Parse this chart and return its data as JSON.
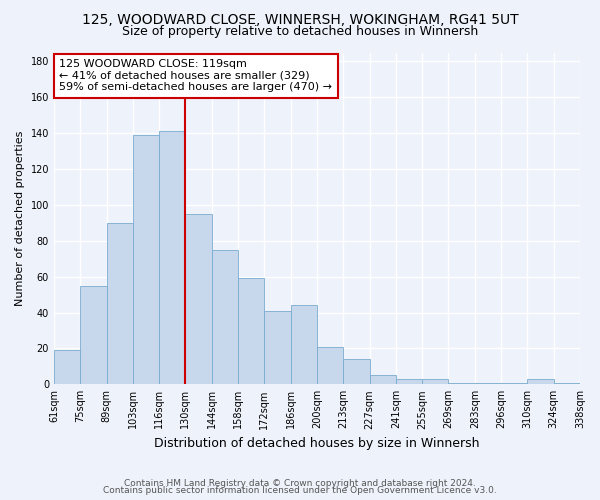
{
  "title": "125, WOODWARD CLOSE, WINNERSH, WOKINGHAM, RG41 5UT",
  "subtitle": "Size of property relative to detached houses in Winnersh",
  "xlabel": "Distribution of detached houses by size in Winnersh",
  "ylabel": "Number of detached properties",
  "bar_labels": [
    "61sqm",
    "75sqm",
    "89sqm",
    "103sqm",
    "116sqm",
    "130sqm",
    "144sqm",
    "158sqm",
    "172sqm",
    "186sqm",
    "200sqm",
    "213sqm",
    "227sqm",
    "241sqm",
    "255sqm",
    "269sqm",
    "283sqm",
    "296sqm",
    "310sqm",
    "324sqm",
    "338sqm"
  ],
  "bar_values": [
    19,
    55,
    90,
    139,
    141,
    95,
    75,
    59,
    41,
    44,
    21,
    14,
    5,
    3,
    3,
    1,
    1,
    1,
    3,
    1
  ],
  "bar_color": "#c8d8ec",
  "bar_edge_color": "#7aabcf",
  "vline_color": "#cc0000",
  "vline_x_index": 4.5,
  "annotation_title": "125 WOODWARD CLOSE: 119sqm",
  "annotation_line1": "← 41% of detached houses are smaller (329)",
  "annotation_line2": "59% of semi-detached houses are larger (470) →",
  "annotation_box_color": "#ffffff",
  "annotation_box_edge": "#cc0000",
  "ylim": [
    0,
    185
  ],
  "yticks": [
    0,
    20,
    40,
    60,
    80,
    100,
    120,
    140,
    160,
    180
  ],
  "footer1": "Contains HM Land Registry data © Crown copyright and database right 2024.",
  "footer2": "Contains public sector information licensed under the Open Government Licence v3.0.",
  "background_color": "#eef2fa",
  "grid_color": "#ffffff",
  "title_fontsize": 10,
  "subtitle_fontsize": 9,
  "ylabel_fontsize": 8,
  "xlabel_fontsize": 9,
  "tick_fontsize": 7,
  "ann_fontsize": 8
}
